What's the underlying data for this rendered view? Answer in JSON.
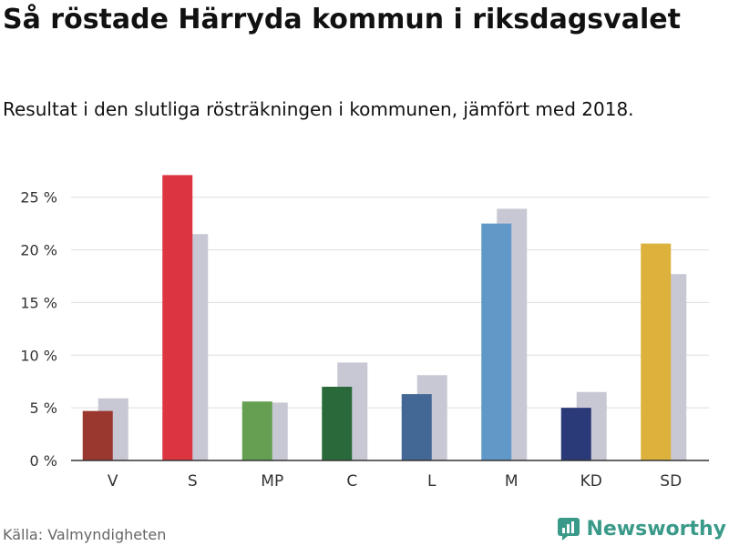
{
  "title": "Så röstade Härryda kommun i riksdagsvalet",
  "subtitle": "Resultat i den slutliga rösträkningen i kommunen, jämfört med 2018.",
  "source": "Källa: Valmyndigheten",
  "brand": "Newsworthy",
  "brand_color": "#3a9a8a",
  "chart_data": {
    "type": "bar",
    "categories": [
      "V",
      "S",
      "MP",
      "C",
      "L",
      "M",
      "KD",
      "SD"
    ],
    "series": [
      {
        "values": [
          4.7,
          27.1,
          5.6,
          7.0,
          6.3,
          22.5,
          5.0,
          20.6
        ],
        "colors": [
          "#9a3830",
          "#dd3540",
          "#65a052",
          "#2a6a3a",
          "#446896",
          "#6098c8",
          "#2a3a78",
          "#ddb23c"
        ]
      },
      {
        "values": [
          5.9,
          21.5,
          5.5,
          9.3,
          8.1,
          23.9,
          6.5,
          17.7
        ],
        "color": "#c8c8d4"
      }
    ],
    "yticks": [
      "0 %",
      "5 %",
      "10 %",
      "15 %",
      "20 %",
      "25 %"
    ],
    "ytick_values": [
      0,
      5,
      10,
      15,
      20,
      25
    ],
    "ylim": [
      0,
      28
    ],
    "grid": true
  }
}
